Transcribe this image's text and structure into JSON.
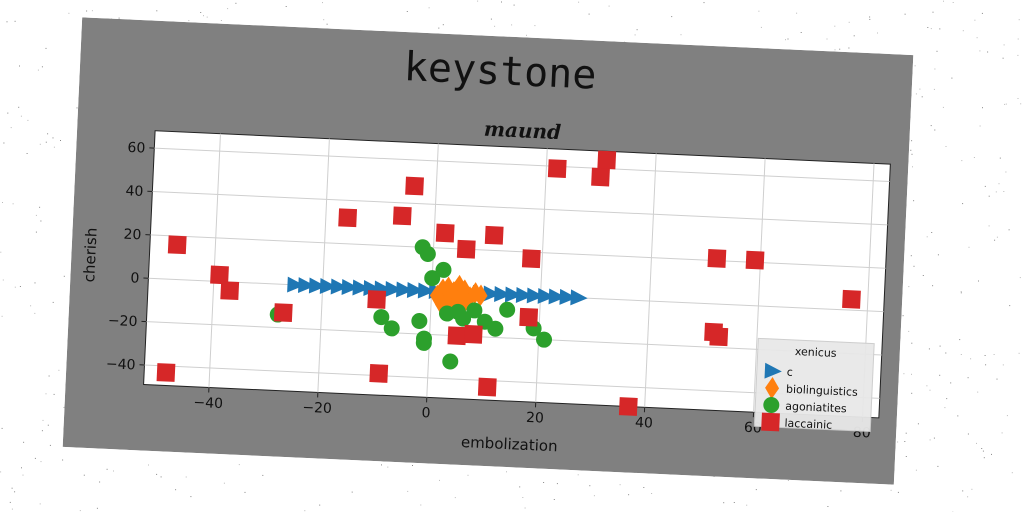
{
  "figure": {
    "suptitle": "keystone",
    "background": "#808080"
  },
  "chart_data": {
    "type": "scatter",
    "title": "maund",
    "xlabel": "embolization",
    "ylabel": "cherish",
    "xlim": [
      -52,
      83
    ],
    "ylim": [
      -49,
      68
    ],
    "xticks": [
      -40,
      -20,
      0,
      20,
      40,
      60,
      80
    ],
    "yticks": [
      -40,
      -20,
      0,
      20,
      40,
      60
    ],
    "grid": true,
    "legend": {
      "title": "xenicus",
      "placement": "lower-right"
    },
    "series": [
      {
        "name": "c",
        "marker": "triangle-right",
        "color": "#1f77b4",
        "points": [
          [
            -25,
            0
          ],
          [
            -23,
            0
          ],
          [
            -21,
            0
          ],
          [
            -19,
            0
          ],
          [
            -17,
            0
          ],
          [
            -15,
            0
          ],
          [
            -13,
            0
          ],
          [
            -11,
            0
          ],
          [
            -9,
            0
          ],
          [
            -7,
            0
          ],
          [
            -5,
            0
          ],
          [
            -3,
            0
          ],
          [
            -1,
            0
          ],
          [
            1,
            0
          ],
          [
            3,
            0
          ],
          [
            5,
            0
          ],
          [
            7,
            0
          ],
          [
            9,
            0
          ],
          [
            11,
            0
          ],
          [
            13,
            0
          ],
          [
            15,
            0
          ],
          [
            17,
            0
          ],
          [
            19,
            0
          ],
          [
            21,
            0
          ],
          [
            23,
            0
          ],
          [
            25,
            0
          ],
          [
            27,
            0
          ]
        ]
      },
      {
        "name": "biolinguistics",
        "marker": "diamond",
        "color": "#ff7f0e",
        "points": [
          [
            1,
            -2
          ],
          [
            2,
            1
          ],
          [
            2,
            -6
          ],
          [
            3,
            2
          ],
          [
            3,
            -4
          ],
          [
            4,
            0
          ],
          [
            4,
            -7
          ],
          [
            5,
            3
          ],
          [
            5,
            -3
          ],
          [
            6,
            -5
          ],
          [
            6,
            1
          ],
          [
            7,
            -2
          ],
          [
            8,
            0
          ],
          [
            9,
            -1
          ]
        ]
      },
      {
        "name": "agoniatites",
        "marker": "circle",
        "color": "#2ca02c",
        "points": [
          [
            -28,
            -14
          ],
          [
            -9,
            -13
          ],
          [
            -7,
            -18
          ],
          [
            -2,
            -14
          ],
          [
            -1,
            -22
          ],
          [
            -1,
            -24
          ],
          [
            -2,
            20
          ],
          [
            -1,
            17
          ],
          [
            0,
            6
          ],
          [
            2,
            10
          ],
          [
            3,
            -10
          ],
          [
            4,
            -32
          ],
          [
            5,
            -9
          ],
          [
            6,
            -12
          ],
          [
            8,
            -8
          ],
          [
            10,
            -13
          ],
          [
            12,
            -16
          ],
          [
            14,
            -7
          ],
          [
            19,
            -15
          ],
          [
            21,
            -20
          ]
        ]
      },
      {
        "name": "laccainic",
        "marker": "square",
        "color": "#d62728",
        "points": [
          [
            -47,
            16
          ],
          [
            -48,
            -43
          ],
          [
            -39,
            3
          ],
          [
            -37,
            -4
          ],
          [
            -27,
            -13
          ],
          [
            -16,
            32
          ],
          [
            -10,
            -5
          ],
          [
            -9,
            -39
          ],
          [
            -6,
            34
          ],
          [
            -4,
            48
          ],
          [
            2,
            27
          ],
          [
            5,
            -20
          ],
          [
            6,
            20
          ],
          [
            8,
            -19
          ],
          [
            11,
            27
          ],
          [
            11,
            -43
          ],
          [
            18,
            17
          ],
          [
            18,
            -10
          ],
          [
            22,
            59
          ],
          [
            30,
            56
          ],
          [
            31,
            64
          ],
          [
            37,
            -49
          ],
          [
            52,
            21
          ],
          [
            52,
            -13
          ],
          [
            53,
            -15
          ],
          [
            59,
            21
          ],
          [
            77,
            5
          ]
        ]
      }
    ]
  }
}
